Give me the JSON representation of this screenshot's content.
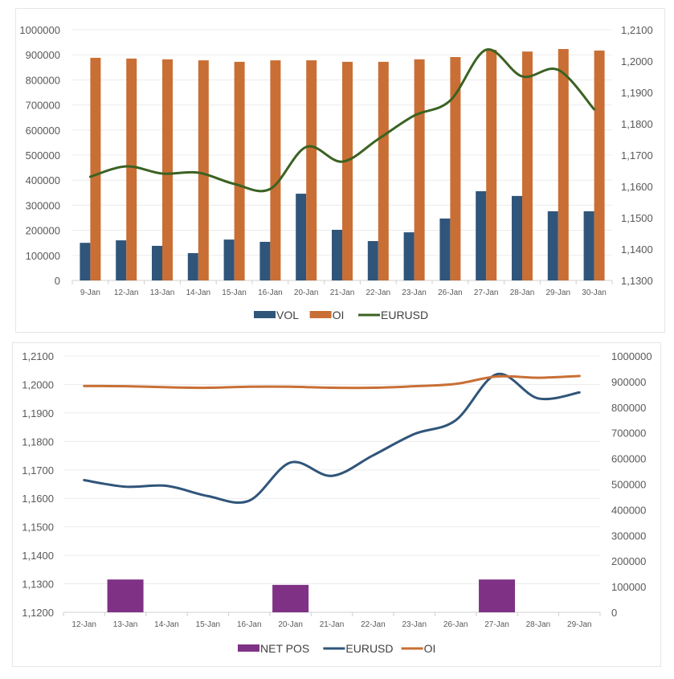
{
  "chart_data": [
    {
      "type": "bar",
      "title": "",
      "categories": [
        "9-Jan",
        "12-Jan",
        "13-Jan",
        "14-Jan",
        "15-Jan",
        "16-Jan",
        "20-Jan",
        "21-Jan",
        "22-Jan",
        "23-Jan",
        "26-Jan",
        "27-Jan",
        "28-Jan",
        "29-Jan",
        "30-Jan"
      ],
      "series": [
        {
          "name": "VOL",
          "kind": "bar",
          "axis": "left",
          "color": "#30557a",
          "values": [
            150000,
            160000,
            138000,
            109000,
            163000,
            154000,
            346000,
            202000,
            157000,
            192000,
            247000,
            356000,
            337000,
            276000,
            276000
          ]
        },
        {
          "name": "OI",
          "kind": "bar",
          "axis": "left",
          "color": "#c96f35",
          "values": [
            888000,
            885000,
            882000,
            878000,
            872000,
            878000,
            878000,
            872000,
            872000,
            882000,
            891000,
            920000,
            913000,
            923000,
            917000
          ]
        },
        {
          "name": "EURUSD",
          "kind": "line",
          "axis": "right",
          "color": "#3b6222",
          "values": [
            1.1631,
            1.1664,
            1.1641,
            1.1644,
            1.1608,
            1.1592,
            1.1726,
            1.1679,
            1.1751,
            1.1826,
            1.1874,
            1.2036,
            1.1951,
            1.1972,
            1.1846
          ]
        }
      ],
      "left_axis": {
        "ylim": [
          0,
          1000000
        ],
        "ticks": [
          "0",
          "100000",
          "200000",
          "300000",
          "400000",
          "500000",
          "600000",
          "700000",
          "800000",
          "900000",
          "1000000"
        ]
      },
      "right_axis": {
        "ylim": [
          1.13,
          1.21
        ],
        "ticks": [
          "1,1300",
          "1,1400",
          "1,1500",
          "1,1600",
          "1,1700",
          "1,1800",
          "1,1900",
          "1,2000",
          "1,2100"
        ]
      },
      "grid": true,
      "legend": {
        "position": "bottom",
        "entries": [
          "VOL",
          "OI",
          "EURUSD"
        ]
      }
    },
    {
      "type": "bar",
      "title": "",
      "categories": [
        "12-Jan",
        "13-Jan",
        "14-Jan",
        "15-Jan",
        "16-Jan",
        "20-Jan",
        "21-Jan",
        "22-Jan",
        "23-Jan",
        "26-Jan",
        "27-Jan",
        "28-Jan",
        "29-Jan"
      ],
      "series": [
        {
          "name": "NET POS",
          "kind": "bar",
          "axis": "right",
          "color": "#7f3285",
          "values": [
            0,
            128000,
            0,
            0,
            0,
            107000,
            0,
            0,
            0,
            0,
            128000,
            0,
            0
          ]
        },
        {
          "name": "EURUSD",
          "kind": "line",
          "axis": "left",
          "color": "#30557a",
          "values": [
            1.1664,
            1.1641,
            1.1644,
            1.1608,
            1.1592,
            1.1726,
            1.1679,
            1.1751,
            1.1826,
            1.1874,
            1.2036,
            1.1951,
            1.1972
          ]
        },
        {
          "name": "OI",
          "kind": "line",
          "axis": "right",
          "color": "#c96f35",
          "values": [
            883000,
            882000,
            878000,
            876000,
            880000,
            880000,
            876000,
            876000,
            882000,
            891000,
            920000,
            915000,
            922000
          ]
        }
      ],
      "left_axis": {
        "ylim": [
          1.12,
          1.21
        ],
        "ticks": [
          "1,1200",
          "1,1300",
          "1,1400",
          "1,1500",
          "1,1600",
          "1,1700",
          "1,1800",
          "1,1900",
          "1,2000",
          "1,2100"
        ]
      },
      "right_axis": {
        "ylim": [
          0,
          1000000
        ],
        "ticks": [
          "0",
          "100000",
          "200000",
          "300000",
          "400000",
          "500000",
          "600000",
          "700000",
          "800000",
          "900000",
          "1000000"
        ]
      },
      "grid": true,
      "legend": {
        "position": "bottom",
        "entries": [
          "NET POS",
          "EURUSD",
          "OI"
        ]
      }
    }
  ]
}
